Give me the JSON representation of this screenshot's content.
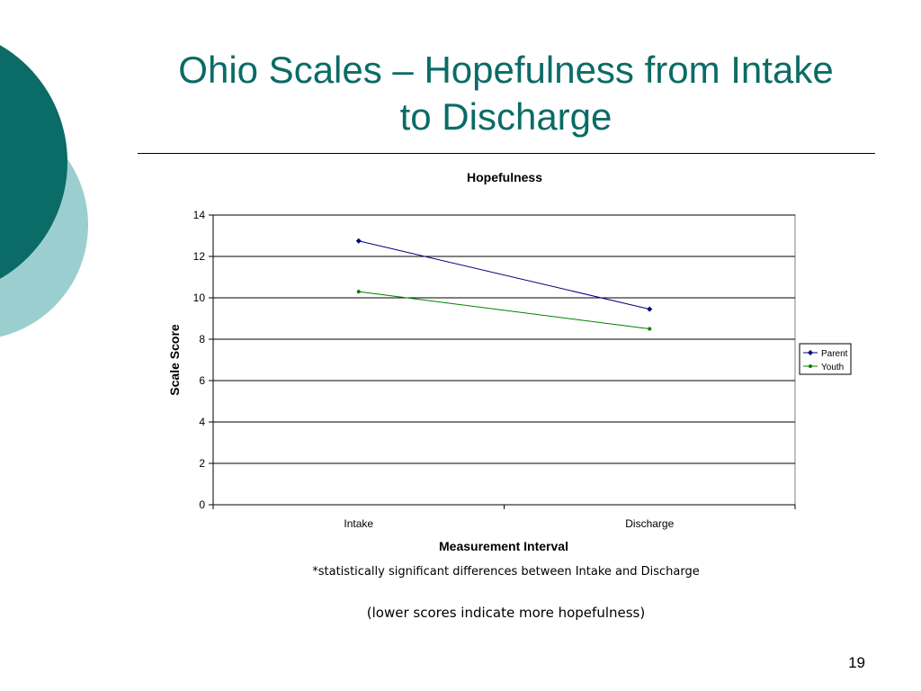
{
  "slide": {
    "title_line1": "Ohio Scales – Hopefulness from Intake",
    "title_line2": "to Discharge",
    "note_significant": "*statistically significant differences between Intake and Discharge",
    "note_lower": "(lower scores indicate more hopefulness)",
    "page_number": "19",
    "colors": {
      "title": "#0b6b66",
      "deco_dark": "#0b6b66",
      "deco_light": "#9bcfcf"
    }
  },
  "chart_data": {
    "type": "line",
    "title": "Hopefulness",
    "xlabel": "Measurement Interval",
    "ylabel": "Scale Score",
    "categories": [
      "Intake",
      "Discharge"
    ],
    "ylim": [
      0,
      14
    ],
    "yticks": [
      0,
      2,
      4,
      6,
      8,
      10,
      12,
      14
    ],
    "grid": true,
    "legend_position": "right",
    "series": [
      {
        "name": "Parent",
        "values": [
          12.75,
          9.45
        ],
        "color": "#000080",
        "marker": "diamond"
      },
      {
        "name": "Youth",
        "values": [
          10.3,
          8.5
        ],
        "color": "#008000",
        "marker": "circle"
      }
    ]
  }
}
